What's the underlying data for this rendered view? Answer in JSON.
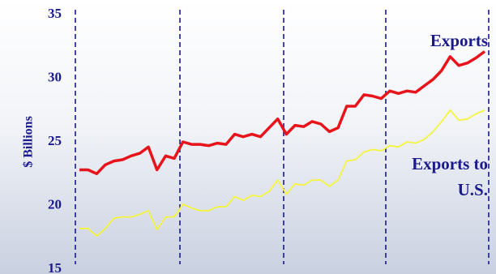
{
  "chart_data": {
    "type": "line",
    "y_label": "$ Billions",
    "categories": [
      null,
      null,
      null,
      null,
      null,
      null,
      null,
      null,
      null,
      null,
      null,
      null,
      null,
      null,
      null,
      null,
      null,
      null,
      null,
      null,
      null,
      null,
      null,
      null,
      null,
      null,
      null,
      null,
      null,
      null,
      null,
      null,
      null,
      null,
      null,
      null,
      null,
      null,
      null,
      null,
      null,
      null,
      null,
      null,
      null,
      null,
      null,
      null
    ],
    "series": [
      {
        "name": "Exports",
        "color": "#e8141b",
        "values": [
          22.8,
          22.8,
          22.5,
          23.2,
          23.5,
          23.6,
          23.9,
          24.1,
          24.6,
          22.8,
          23.9,
          23.7,
          25.0,
          24.8,
          24.8,
          24.7,
          24.9,
          24.8,
          25.6,
          25.4,
          25.6,
          25.4,
          26.1,
          26.8,
          25.6,
          26.3,
          26.2,
          26.6,
          26.4,
          25.8,
          26.1,
          27.8,
          27.8,
          28.7,
          28.6,
          28.4,
          29.0,
          28.8,
          29.0,
          28.9,
          29.4,
          29.9,
          30.6,
          31.7,
          31.0,
          31.2,
          31.6,
          32.1
        ]
      },
      {
        "name": "Exports to U.S.",
        "color": "#f5f53c",
        "values": [
          18.2,
          18.2,
          17.6,
          18.2,
          19.0,
          19.1,
          19.1,
          19.3,
          19.6,
          18.1,
          19.1,
          19.1,
          20.1,
          19.8,
          19.6,
          19.6,
          19.9,
          19.9,
          20.7,
          20.4,
          20.8,
          20.7,
          21.1,
          22.0,
          20.9,
          21.7,
          21.6,
          22.0,
          22.0,
          21.5,
          22.0,
          23.5,
          23.6,
          24.2,
          24.4,
          24.3,
          24.7,
          24.6,
          25.0,
          24.9,
          25.2,
          25.8,
          26.6,
          27.5,
          26.7,
          26.8,
          27.2,
          27.5
        ]
      }
    ],
    "ylim": [
      15,
      35
    ],
    "yticks": [
      15,
      20,
      25,
      30,
      35
    ]
  }
}
